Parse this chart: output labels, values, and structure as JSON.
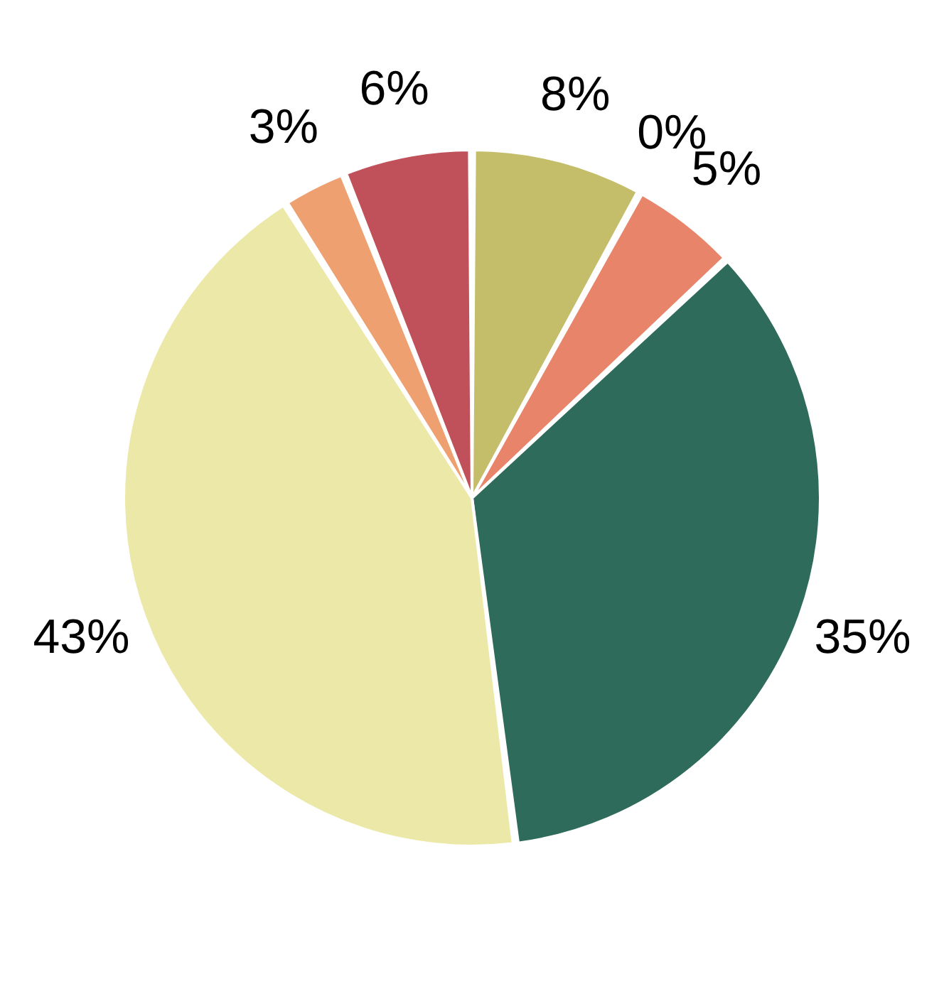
{
  "chart_data": {
    "type": "pie",
    "categories": [
      null,
      null,
      null,
      null,
      null,
      null,
      null
    ],
    "values": [
      8,
      0,
      5,
      35,
      43,
      3,
      6
    ],
    "value_labels": [
      "8%",
      "0%",
      "5%",
      "35%",
      "43%",
      "3%",
      "6%"
    ],
    "colors": [
      "#c4bd6a",
      "#c8c8c8",
      "#e8846a",
      "#2e6b5a",
      "#ece9a8",
      "#eea070",
      "#c0505a"
    ]
  }
}
